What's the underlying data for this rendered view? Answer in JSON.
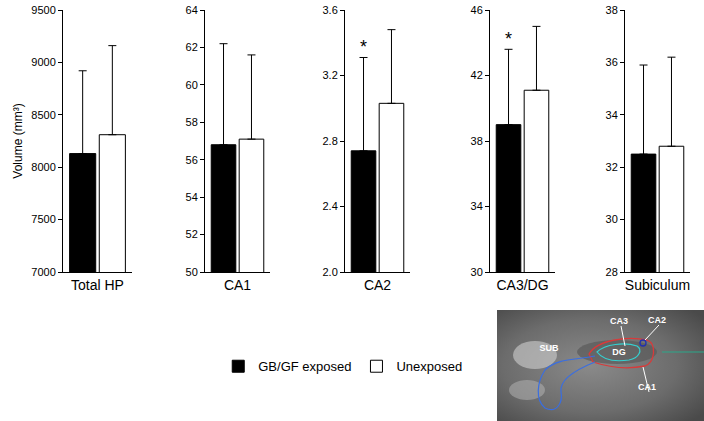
{
  "chart_data": [
    {
      "type": "bar",
      "categories": [
        "Total HP"
      ],
      "ylabel": "Volume (mm³)",
      "series": [
        {
          "name": "GB/GF exposed",
          "color": "#000000",
          "values": [
            8130
          ],
          "errors": [
            790
          ]
        },
        {
          "name": "Unexposed",
          "color": "#ffffff",
          "values": [
            8310
          ],
          "errors": [
            850
          ]
        }
      ],
      "ylim": [
        7000,
        9500
      ],
      "yticks": [
        7000,
        7500,
        8000,
        8500,
        9000,
        9500
      ],
      "grid": false,
      "legend": "bottom"
    },
    {
      "type": "bar",
      "categories": [
        "CA1"
      ],
      "series": [
        {
          "name": "GB/GF exposed",
          "color": "#000000",
          "values": [
            56.8
          ],
          "errors": [
            5.4
          ]
        },
        {
          "name": "Unexposed",
          "color": "#ffffff",
          "values": [
            57.1
          ],
          "errors": [
            4.5
          ]
        }
      ],
      "ylim": [
        50,
        64
      ],
      "yticks": [
        50,
        52,
        54,
        56,
        58,
        60,
        62,
        64
      ],
      "grid": false
    },
    {
      "type": "bar",
      "categories": [
        "CA2"
      ],
      "series": [
        {
          "name": "GB/GF exposed",
          "color": "#000000",
          "values": [
            2.74
          ],
          "errors": [
            0.57
          ]
        },
        {
          "name": "Unexposed",
          "color": "#ffffff",
          "values": [
            3.03
          ],
          "errors": [
            0.45
          ]
        }
      ],
      "ylim": [
        2.0,
        3.6
      ],
      "yticks": [
        {
          "value": 2.0,
          "label": "2.0"
        },
        {
          "value": 2.4,
          "label": "2.4"
        },
        {
          "value": 2.8,
          "label": "2.8"
        },
        {
          "value": 3.2,
          "label": "3.2"
        },
        {
          "value": 3.6,
          "label": "3.6"
        }
      ],
      "annotations": [
        {
          "text": "*",
          "series": 0,
          "category": 0
        }
      ],
      "grid": false
    },
    {
      "type": "bar",
      "categories": [
        "CA3/DG"
      ],
      "series": [
        {
          "name": "GB/GF exposed",
          "color": "#000000",
          "values": [
            39.0
          ],
          "errors": [
            4.6
          ]
        },
        {
          "name": "Unexposed",
          "color": "#ffffff",
          "values": [
            41.1
          ],
          "errors": [
            3.9
          ]
        }
      ],
      "ylim": [
        30,
        46
      ],
      "yticks": [
        30,
        34,
        38,
        42,
        46
      ],
      "annotations": [
        {
          "text": "*",
          "series": 0,
          "category": 0
        }
      ],
      "grid": false
    },
    {
      "type": "bar",
      "categories": [
        "Subiculum"
      ],
      "series": [
        {
          "name": "GB/GF exposed",
          "color": "#000000",
          "values": [
            32.5
          ],
          "errors": [
            3.4
          ]
        },
        {
          "name": "Unexposed",
          "color": "#ffffff",
          "values": [
            32.8
          ],
          "errors": [
            3.4
          ]
        }
      ],
      "ylim": [
        28,
        38
      ],
      "yticks": [
        28,
        30,
        32,
        34,
        36,
        38
      ],
      "grid": false
    }
  ],
  "inset": {
    "labels": [
      "CA3",
      "CA2",
      "DG",
      "SUB",
      "CA1"
    ]
  }
}
